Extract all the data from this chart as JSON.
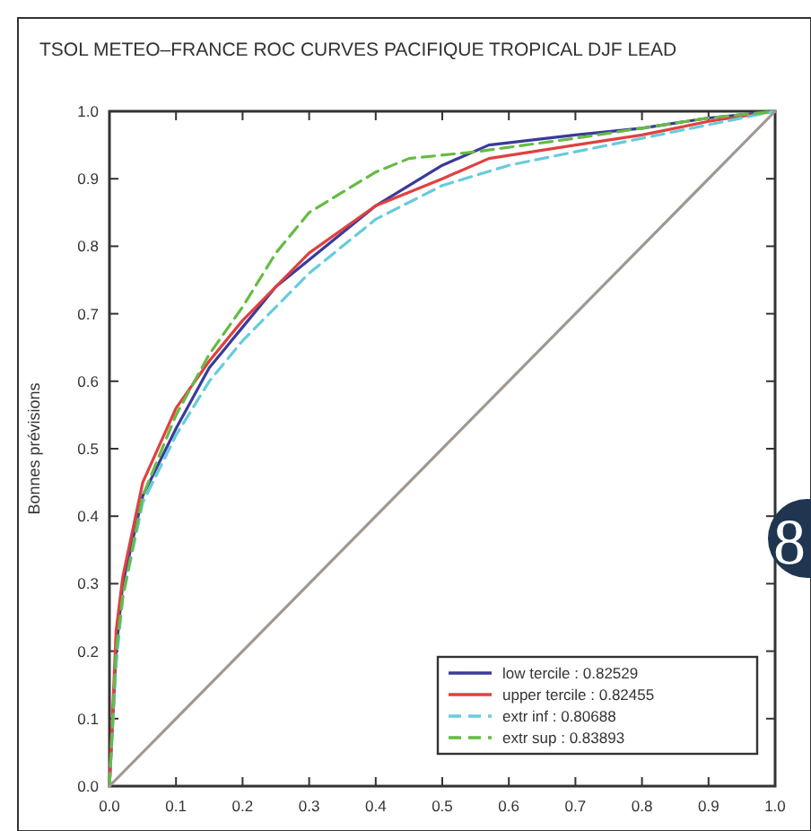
{
  "chart_data": {
    "type": "line",
    "title": "TSOL METEO–FRANCE ROC CURVES PACIFIQUE TROPICAL DJF LEAD",
    "ylabel": "Bonnes prévisions",
    "annotations": [
      "8"
    ],
    "xlim": [
      0,
      1
    ],
    "ylim": [
      0,
      1
    ],
    "xticks": [
      {
        "value": 0,
        "label": "0.0"
      },
      0.1,
      0.2,
      0.3,
      0.4,
      0.5,
      0.6,
      0.7,
      0.8,
      0.9,
      {
        "value": 1,
        "label": "1.0"
      }
    ],
    "yticks": [
      {
        "value": 0,
        "label": "0.0"
      },
      0.1,
      0.2,
      0.3,
      0.4,
      0.5,
      0.6,
      0.7,
      0.8,
      0.9,
      {
        "value": 1,
        "label": "1.0"
      }
    ],
    "legend": "bottom right",
    "grid": false,
    "marker": "none",
    "series": [
      {
        "name": "low tercile : 0.82529",
        "color": "#3a3a9a",
        "line_style": "solid",
        "x": [
          0,
          0.01,
          0.02,
          0.05,
          0.1,
          0.15,
          0.2,
          0.25,
          0.3,
          0.4,
          0.5,
          0.57,
          0.7,
          0.8,
          0.9,
          1
        ],
        "values": [
          0,
          0.2,
          0.3,
          0.43,
          0.53,
          0.62,
          0.68,
          0.74,
          0.78,
          0.86,
          0.92,
          0.95,
          0.965,
          0.975,
          0.99,
          1
        ]
      },
      {
        "name": "upper tercile : 0.82455",
        "color": "#e04040",
        "line_style": "solid",
        "x": [
          0,
          0.01,
          0.02,
          0.05,
          0.1,
          0.15,
          0.2,
          0.3,
          0.4,
          0.5,
          0.57,
          0.7,
          0.8,
          0.9,
          1
        ],
        "values": [
          0,
          0.23,
          0.31,
          0.45,
          0.56,
          0.63,
          0.69,
          0.79,
          0.86,
          0.9,
          0.93,
          0.95,
          0.965,
          0.985,
          1
        ]
      },
      {
        "name": "extr inf : 0.80688",
        "color": "#66ccdd",
        "line_style": "dashed",
        "x": [
          0,
          0.01,
          0.02,
          0.05,
          0.1,
          0.15,
          0.2,
          0.3,
          0.4,
          0.5,
          0.6,
          0.7,
          0.8,
          0.9,
          1
        ],
        "values": [
          0,
          0.18,
          0.28,
          0.42,
          0.52,
          0.6,
          0.66,
          0.76,
          0.84,
          0.89,
          0.92,
          0.94,
          0.96,
          0.98,
          1
        ]
      },
      {
        "name": "extr sup : 0.83893",
        "color": "#66bb44",
        "line_style": "dashed",
        "x": [
          0,
          0.01,
          0.02,
          0.05,
          0.1,
          0.15,
          0.2,
          0.25,
          0.3,
          0.35,
          0.4,
          0.45,
          0.55,
          0.7,
          0.8,
          0.9,
          1
        ],
        "values": [
          0,
          0.2,
          0.28,
          0.43,
          0.55,
          0.64,
          0.71,
          0.79,
          0.85,
          0.88,
          0.91,
          0.93,
          0.94,
          0.96,
          0.975,
          0.99,
          1
        ]
      },
      {
        "color": "#a09890",
        "line_style": "solid",
        "x": [
          0,
          1
        ],
        "values": [
          0,
          1
        ]
      }
    ]
  }
}
